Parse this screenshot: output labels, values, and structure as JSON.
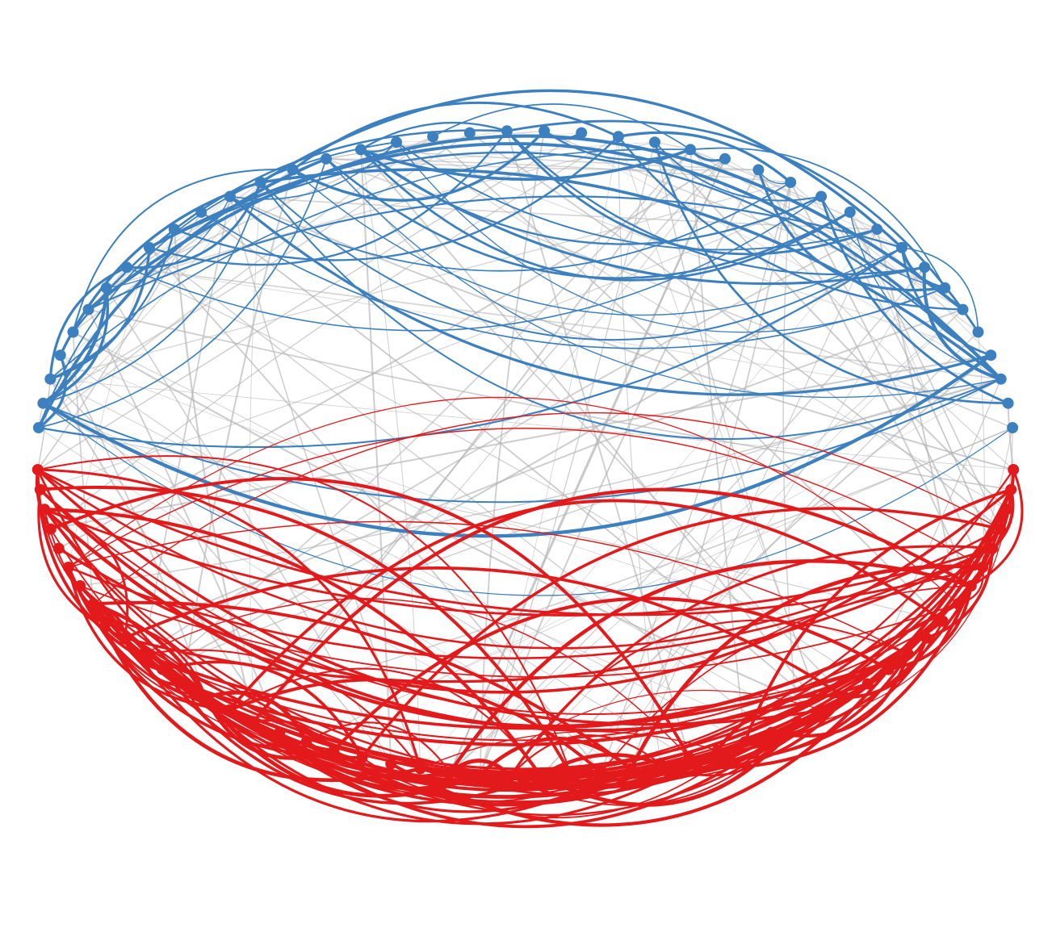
{
  "colors": {
    "background": "#ffffff",
    "blue_group": "#3d80bf",
    "red_group": "#e31a1c",
    "between_groups": "#b3b3b3"
  },
  "network": {
    "layout": "circle",
    "node_count": 90,
    "groups": [
      {
        "name": "",
        "color_key": "blue_group",
        "first_node": 0,
        "last_node": 39
      },
      {
        "name": "",
        "color_key": "red_group",
        "first_node": 40,
        "last_node": 89
      }
    ]
  }
}
